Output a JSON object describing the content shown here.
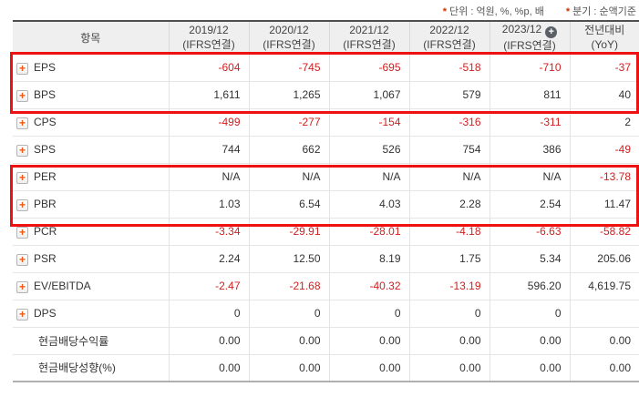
{
  "notes": {
    "star": "*",
    "unit": "단위 : 억원, %, %p, 배",
    "basis": "분기 : 순액기준"
  },
  "icons": {
    "plus": "+"
  },
  "colors": {
    "negative": "#d02020",
    "positive": "#333333",
    "highlight": "#ee1111",
    "rowplus": "#f05a14",
    "headerplus": "#5a6066",
    "headerbg": "#efefef",
    "notestar": "#cc3300"
  },
  "table": {
    "item_header": "항목",
    "columns": [
      {
        "period": "2019/12",
        "standard": "(IFRS연결)",
        "plus_icon": false
      },
      {
        "period": "2020/12",
        "standard": "(IFRS연결)",
        "plus_icon": false
      },
      {
        "period": "2021/12",
        "standard": "(IFRS연결)",
        "plus_icon": false
      },
      {
        "period": "2022/12",
        "standard": "(IFRS연결)",
        "plus_icon": false
      },
      {
        "period": "2023/12",
        "standard": "(IFRS연결)",
        "plus_icon": true
      },
      {
        "period": "전년대비",
        "standard": "(YoY)",
        "plus_icon": false
      }
    ],
    "rows": [
      {
        "label": "EPS",
        "icon": true,
        "highlighted": true,
        "values": [
          {
            "v": "-604",
            "neg": true
          },
          {
            "v": "-745",
            "neg": true
          },
          {
            "v": "-695",
            "neg": true
          },
          {
            "v": "-518",
            "neg": true
          },
          {
            "v": "-710",
            "neg": true
          },
          {
            "v": "-37",
            "neg": true
          }
        ]
      },
      {
        "label": "BPS",
        "icon": true,
        "highlighted": true,
        "values": [
          {
            "v": "1,611",
            "neg": false
          },
          {
            "v": "1,265",
            "neg": false
          },
          {
            "v": "1,067",
            "neg": false
          },
          {
            "v": "579",
            "neg": false
          },
          {
            "v": "811",
            "neg": false
          },
          {
            "v": "40",
            "neg": false
          }
        ]
      },
      {
        "label": "CPS",
        "icon": true,
        "highlighted": false,
        "values": [
          {
            "v": "-499",
            "neg": true
          },
          {
            "v": "-277",
            "neg": true
          },
          {
            "v": "-154",
            "neg": true
          },
          {
            "v": "-316",
            "neg": true
          },
          {
            "v": "-311",
            "neg": true
          },
          {
            "v": "2",
            "neg": false
          }
        ]
      },
      {
        "label": "SPS",
        "icon": true,
        "highlighted": false,
        "values": [
          {
            "v": "744",
            "neg": false
          },
          {
            "v": "662",
            "neg": false
          },
          {
            "v": "526",
            "neg": false
          },
          {
            "v": "754",
            "neg": false
          },
          {
            "v": "386",
            "neg": false
          },
          {
            "v": "-49",
            "neg": true
          }
        ]
      },
      {
        "label": "PER",
        "icon": true,
        "highlighted": true,
        "values": [
          {
            "v": "N/A",
            "neg": false
          },
          {
            "v": "N/A",
            "neg": false
          },
          {
            "v": "N/A",
            "neg": false
          },
          {
            "v": "N/A",
            "neg": false
          },
          {
            "v": "N/A",
            "neg": false
          },
          {
            "v": "-13.78",
            "neg": true
          }
        ]
      },
      {
        "label": "PBR",
        "icon": true,
        "highlighted": true,
        "values": [
          {
            "v": "1.03",
            "neg": false
          },
          {
            "v": "6.54",
            "neg": false
          },
          {
            "v": "4.03",
            "neg": false
          },
          {
            "v": "2.28",
            "neg": false
          },
          {
            "v": "2.54",
            "neg": false
          },
          {
            "v": "11.47",
            "neg": false
          }
        ]
      },
      {
        "label": "PCR",
        "icon": true,
        "highlighted": false,
        "values": [
          {
            "v": "-3.34",
            "neg": true
          },
          {
            "v": "-29.91",
            "neg": true
          },
          {
            "v": "-28.01",
            "neg": true
          },
          {
            "v": "-4.18",
            "neg": true
          },
          {
            "v": "-6.63",
            "neg": true
          },
          {
            "v": "-58.82",
            "neg": true
          }
        ]
      },
      {
        "label": "PSR",
        "icon": true,
        "highlighted": false,
        "values": [
          {
            "v": "2.24",
            "neg": false
          },
          {
            "v": "12.50",
            "neg": false
          },
          {
            "v": "8.19",
            "neg": false
          },
          {
            "v": "1.75",
            "neg": false
          },
          {
            "v": "5.34",
            "neg": false
          },
          {
            "v": "205.06",
            "neg": false
          }
        ]
      },
      {
        "label": "EV/EBITDA",
        "icon": true,
        "highlighted": false,
        "values": [
          {
            "v": "-2.47",
            "neg": true
          },
          {
            "v": "-21.68",
            "neg": true
          },
          {
            "v": "-40.32",
            "neg": true
          },
          {
            "v": "-13.19",
            "neg": true
          },
          {
            "v": "596.20",
            "neg": false
          },
          {
            "v": "4,619.75",
            "neg": false
          }
        ]
      },
      {
        "label": "DPS",
        "icon": true,
        "highlighted": false,
        "values": [
          {
            "v": "0",
            "neg": false
          },
          {
            "v": "0",
            "neg": false
          },
          {
            "v": "0",
            "neg": false
          },
          {
            "v": "0",
            "neg": false
          },
          {
            "v": "0",
            "neg": false
          },
          {
            "v": "",
            "neg": false
          }
        ]
      },
      {
        "label": "현금배당수익률",
        "icon": false,
        "highlighted": false,
        "values": [
          {
            "v": "0.00",
            "neg": false
          },
          {
            "v": "0.00",
            "neg": false
          },
          {
            "v": "0.00",
            "neg": false
          },
          {
            "v": "0.00",
            "neg": false
          },
          {
            "v": "0.00",
            "neg": false
          },
          {
            "v": "0.00",
            "neg": false
          }
        ]
      },
      {
        "label": "현금배당성향(%)",
        "icon": false,
        "highlighted": false,
        "values": [
          {
            "v": "0.00",
            "neg": false
          },
          {
            "v": "0.00",
            "neg": false
          },
          {
            "v": "0.00",
            "neg": false
          },
          {
            "v": "0.00",
            "neg": false
          },
          {
            "v": "0.00",
            "neg": false
          },
          {
            "v": "0.00",
            "neg": false
          }
        ]
      }
    ]
  }
}
